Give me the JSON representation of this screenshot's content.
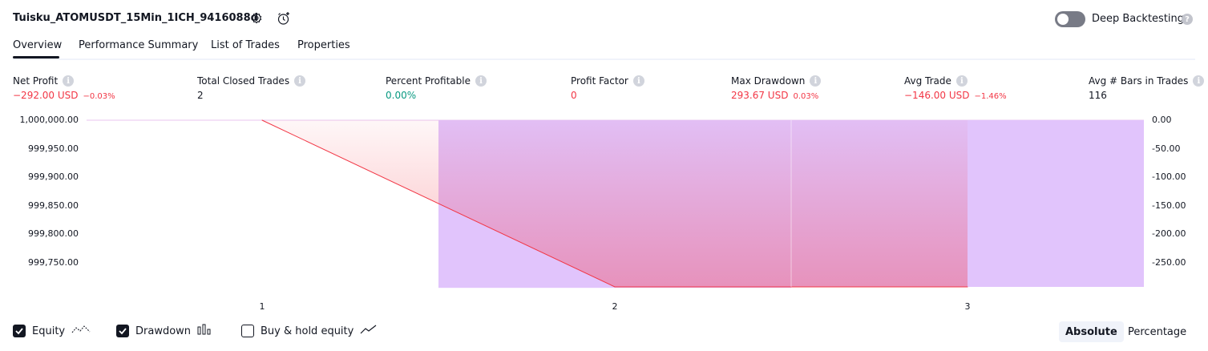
{
  "header": {
    "strategy_name": "Tuisku_ATOMUSDT_15Min_1ICH_9416088d",
    "deep_backtesting_label": "Deep Backtesting",
    "help_icon": "?"
  },
  "tabs": [
    {
      "label": "Overview",
      "active": true
    },
    {
      "label": "Performance Summary",
      "active": false
    },
    {
      "label": "List of Trades",
      "active": false
    },
    {
      "label": "Properties",
      "active": false
    }
  ],
  "metrics": [
    {
      "label": "Net Profit",
      "value": "−292.00 USD",
      "pct": "−0.03%",
      "tone": "neg"
    },
    {
      "label": "Total Closed Trades",
      "value": "2",
      "pct": "",
      "tone": "neu"
    },
    {
      "label": "Percent Profitable",
      "value": "0.00%",
      "pct": "",
      "tone": "pos"
    },
    {
      "label": "Profit Factor",
      "value": "0",
      "pct": "",
      "tone": "neg"
    },
    {
      "label": "Max Drawdown",
      "value": "293.67 USD",
      "pct": "0.03%",
      "tone": "neg"
    },
    {
      "label": "Avg Trade",
      "value": "−146.00 USD",
      "pct": "−1.46%",
      "tone": "neg"
    },
    {
      "label": "Avg # Bars in Trades",
      "value": "116",
      "pct": "",
      "tone": "neu"
    }
  ],
  "info_icon": "i",
  "chart_data": {
    "type": "line",
    "x": [
      1,
      2,
      3
    ],
    "x_tick_labels": [
      "1",
      "2",
      "3"
    ],
    "y_left_ticks": [
      "1,000,000.00",
      "999,950.00",
      "999,900.00",
      "999,850.00",
      "999,800.00",
      "999,750.00"
    ],
    "y_right_ticks": [
      "0.00",
      "-50.00",
      "-100.00",
      "-150.00",
      "-200.00",
      "-250.00"
    ],
    "y_left_range": [
      999708,
      1000000
    ],
    "y_right_range": [
      -292,
      0
    ],
    "series": [
      {
        "name": "Equity",
        "values": [
          1000000.0,
          999708.0,
          999708.0
        ],
        "color": "#f23645"
      },
      {
        "name": "Drawdown",
        "type": "bar",
        "values": [
          0.0,
          -293.67,
          -292.0
        ],
        "color": "#d1a8fb"
      }
    ],
    "buy_hold_equity_visible": false
  },
  "legend": {
    "equity_label": "Equity",
    "equity_checked": true,
    "drawdown_label": "Drawdown",
    "drawdown_checked": true,
    "buyhold_label": "Buy & hold equity",
    "buyhold_checked": false
  },
  "view_toggle": {
    "absolute_label": "Absolute",
    "percentage_label": "Percentage",
    "active": "Absolute"
  },
  "colors": {
    "negative": "#f23645",
    "positive": "#089981",
    "drawdown_fill": "#e1c4fc",
    "equity_line": "#f23645"
  }
}
